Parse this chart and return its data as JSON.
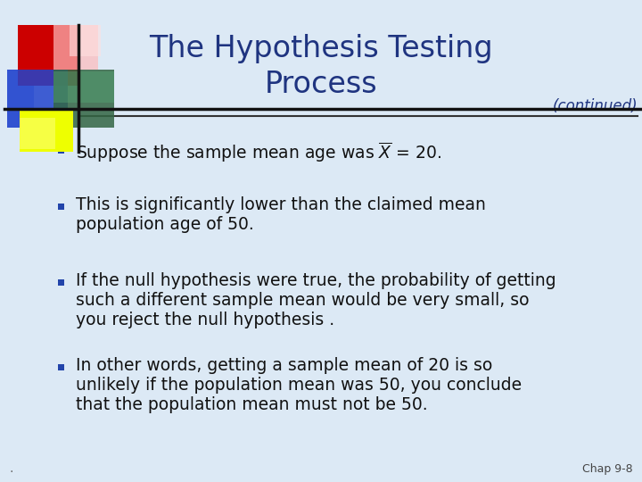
{
  "title_line1": "The Hypothesis Testing",
  "title_line2": "Process",
  "title_color": "#1F3480",
  "continued_text": "(continued)",
  "continued_color": "#1F3480",
  "background_color": "#DCE9F5",
  "bullet_color": "#2244AA",
  "text_color": "#111111",
  "bullet2_line1": "This is significantly lower than the claimed mean",
  "bullet2_line2": "population age of 50.",
  "bullet3_line1": "If the null hypothesis were true, the probability of getting",
  "bullet3_line2": "such a different sample mean would be very small, so",
  "bullet3_line3": "you reject the null hypothesis .",
  "bullet4_line1": "In other words, getting a sample mean of 20 is so",
  "bullet4_line2": "unlikely if the population mean was 50, you conclude",
  "bullet4_line3": "that the population mean must not be 50.",
  "footer": "Chap 9-8",
  "separator_color": "#333333",
  "font_size_title": 24,
  "font_size_body": 13.5,
  "font_size_footer": 9
}
